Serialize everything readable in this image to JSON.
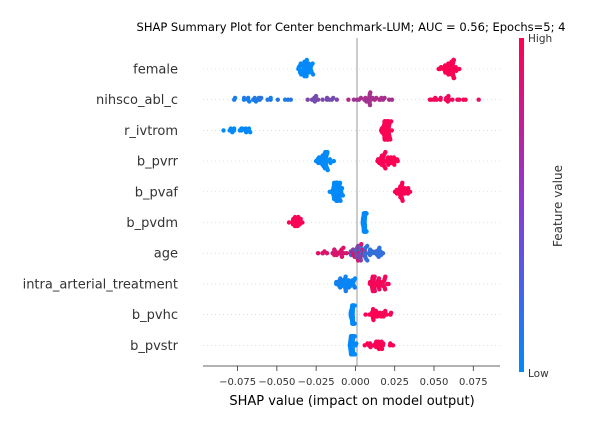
{
  "chart_data": {
    "type": "scatter",
    "title": "SHAP Summary Plot for Center benchmark-LUM; AUC = 0.56; Epochs=5; 4",
    "xlabel": "SHAP value (impact on model output)",
    "ylabel": "",
    "xlim": [
      -0.097,
      0.092
    ],
    "xticks": [
      "−0.075",
      "−0.050",
      "−0.025",
      "0.000",
      "0.025",
      "0.050",
      "0.075"
    ],
    "xtick_values": [
      -0.075,
      -0.05,
      -0.025,
      0.0,
      0.025,
      0.05,
      0.075
    ],
    "features": [
      "female",
      "nihsco_abl_c",
      "r_ivtrom",
      "b_pvrr",
      "b_pvaf",
      "b_pvdm",
      "age",
      "intra_arterial_treatment",
      "b_pvhc",
      "b_pvstr"
    ],
    "colorbar": {
      "label": "Feature value",
      "high": "High",
      "low": "Low",
      "low_color": "#008bfb",
      "high_color": "#ff0052"
    },
    "grid": false,
    "clusters": [
      {
        "feature": "female",
        "groups": [
          {
            "center": -0.032,
            "spread": 0.009,
            "count": 40,
            "value": 0.0
          },
          {
            "center": 0.06,
            "spread": 0.009,
            "count": 40,
            "value": 1.0
          }
        ]
      },
      {
        "feature": "nihsco_abl_c",
        "groups": [
          {
            "center": -0.06,
            "spread": 0.028,
            "count": 22,
            "value": 0.12
          },
          {
            "center": -0.02,
            "spread": 0.015,
            "count": 14,
            "value": 0.45
          },
          {
            "center": 0.01,
            "spread": 0.022,
            "count": 28,
            "value": 0.65
          },
          {
            "center": 0.055,
            "spread": 0.025,
            "count": 18,
            "value": 0.95
          }
        ]
      },
      {
        "feature": "r_ivtrom",
        "groups": [
          {
            "center": -0.075,
            "spread": 0.012,
            "count": 16,
            "value": 0.0
          },
          {
            "center": 0.02,
            "spread": 0.004,
            "count": 60,
            "value": 1.0
          }
        ]
      },
      {
        "feature": "b_pvrr",
        "groups": [
          {
            "center": -0.02,
            "spread": 0.007,
            "count": 36,
            "value": 0.0
          },
          {
            "center": 0.02,
            "spread": 0.01,
            "count": 36,
            "value": 1.0
          }
        ]
      },
      {
        "feature": "b_pvaf",
        "groups": [
          {
            "center": -0.012,
            "spread": 0.005,
            "count": 50,
            "value": 0.0
          },
          {
            "center": 0.03,
            "spread": 0.007,
            "count": 30,
            "value": 1.0
          }
        ]
      },
      {
        "feature": "b_pvdm",
        "groups": [
          {
            "center": -0.038,
            "spread": 0.006,
            "count": 18,
            "value": 1.0
          },
          {
            "center": 0.006,
            "spread": 0.002,
            "count": 45,
            "value": 0.0
          }
        ]
      },
      {
        "feature": "age",
        "groups": [
          {
            "center": -0.01,
            "spread": 0.022,
            "count": 30,
            "value": 0.85
          },
          {
            "center": 0.01,
            "spread": 0.018,
            "count": 30,
            "value": 0.2
          },
          {
            "center": 0.002,
            "spread": 0.006,
            "count": 20,
            "value": 0.5
          }
        ]
      },
      {
        "feature": "intra_arterial_treatment",
        "groups": [
          {
            "center": -0.006,
            "spread": 0.01,
            "count": 36,
            "value": 0.05
          },
          {
            "center": 0.013,
            "spread": 0.011,
            "count": 40,
            "value": 0.95
          }
        ]
      },
      {
        "feature": "b_pvhc",
        "groups": [
          {
            "center": -0.002,
            "spread": 0.002,
            "count": 38,
            "value": 0.0
          },
          {
            "center": 0.014,
            "spread": 0.012,
            "count": 26,
            "value": 1.0
          }
        ]
      },
      {
        "feature": "b_pvstr",
        "groups": [
          {
            "center": -0.002,
            "spread": 0.003,
            "count": 44,
            "value": 0.0
          },
          {
            "center": 0.014,
            "spread": 0.014,
            "count": 24,
            "value": 1.0
          }
        ]
      }
    ]
  }
}
